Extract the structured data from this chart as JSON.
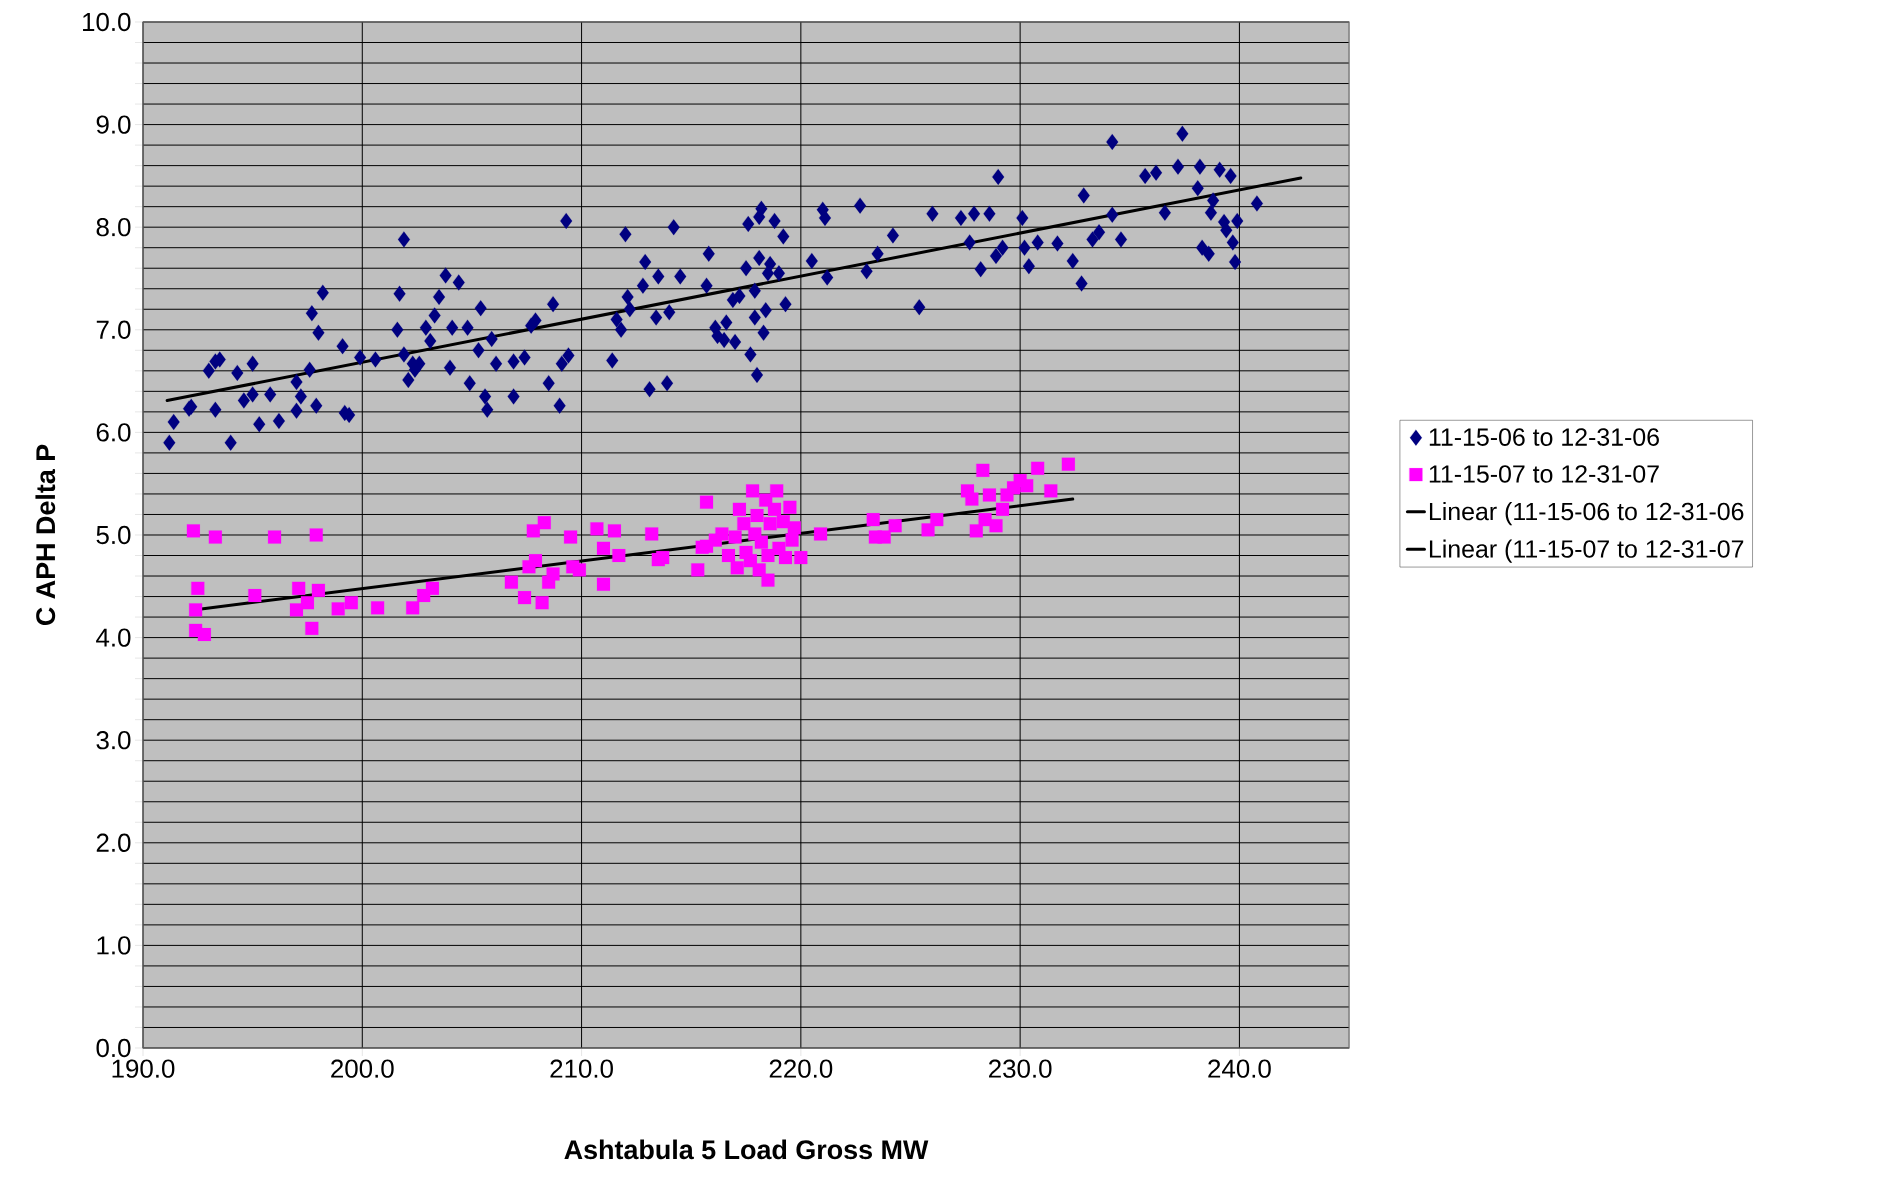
{
  "chart_data": {
    "type": "scatter",
    "xlabel": "Ashtabula 5 Load Gross MW",
    "ylabel": "C APH Delta P",
    "xlim": [
      190,
      245
    ],
    "ylim": [
      0,
      10
    ],
    "xticks": [
      {
        "value": 190,
        "label": "190.0"
      },
      {
        "value": 200,
        "label": "200.0"
      },
      {
        "value": 210,
        "label": "210.0"
      },
      {
        "value": 220,
        "label": "220.0"
      },
      {
        "value": 230,
        "label": "230.0"
      },
      {
        "value": 240,
        "label": "240.0"
      }
    ],
    "yticks": [
      {
        "value": 0,
        "label": "0.0"
      },
      {
        "value": 0.2,
        "label": null
      },
      {
        "value": 0.4,
        "label": null
      },
      {
        "value": 0.6,
        "label": null
      },
      {
        "value": 0.8,
        "label": null
      },
      {
        "value": 1,
        "label": "1.0"
      },
      {
        "value": 1.2,
        "label": null
      },
      {
        "value": 1.4,
        "label": null
      },
      {
        "value": 1.6,
        "label": null
      },
      {
        "value": 1.8,
        "label": null
      },
      {
        "value": 2,
        "label": "2.0"
      },
      {
        "value": 2.2,
        "label": null
      },
      {
        "value": 2.4,
        "label": null
      },
      {
        "value": 2.6,
        "label": null
      },
      {
        "value": 2.8,
        "label": null
      },
      {
        "value": 3,
        "label": "3.0"
      },
      {
        "value": 3.2,
        "label": null
      },
      {
        "value": 3.4,
        "label": null
      },
      {
        "value": 3.6,
        "label": null
      },
      {
        "value": 3.8,
        "label": null
      },
      {
        "value": 4,
        "label": "4.0"
      },
      {
        "value": 4.2,
        "label": null
      },
      {
        "value": 4.4,
        "label": null
      },
      {
        "value": 4.6,
        "label": null
      },
      {
        "value": 4.8,
        "label": null
      },
      {
        "value": 5,
        "label": "5.0"
      },
      {
        "value": 5.2,
        "label": null
      },
      {
        "value": 5.4,
        "label": null
      },
      {
        "value": 5.6,
        "label": null
      },
      {
        "value": 5.8,
        "label": null
      },
      {
        "value": 6,
        "label": "6.0"
      },
      {
        "value": 6.2,
        "label": null
      },
      {
        "value": 6.4,
        "label": null
      },
      {
        "value": 6.6,
        "label": null
      },
      {
        "value": 6.8,
        "label": null
      },
      {
        "value": 7,
        "label": "7.0"
      },
      {
        "value": 7.2,
        "label": null
      },
      {
        "value": 7.4,
        "label": null
      },
      {
        "value": 7.6,
        "label": null
      },
      {
        "value": 7.8,
        "label": null
      },
      {
        "value": 8,
        "label": "8.0"
      },
      {
        "value": 8.2,
        "label": null
      },
      {
        "value": 8.4,
        "label": null
      },
      {
        "value": 8.6,
        "label": null
      },
      {
        "value": 8.8,
        "label": null
      },
      {
        "value": 9,
        "label": "9.0"
      },
      {
        "value": 9.2,
        "label": null
      },
      {
        "value": 9.4,
        "label": null
      },
      {
        "value": 9.6,
        "label": null
      },
      {
        "value": 9.8,
        "label": null
      },
      {
        "value": 10,
        "label": "10.0"
      }
    ],
    "grid": true,
    "legend": "right",
    "series": [
      {
        "name": "11-15-06 to 12-31-06",
        "color": "#000080",
        "marker": "diamond",
        "x": [
          191.2,
          191.4,
          192.1,
          192.2,
          193.0,
          193.3,
          193.5,
          193.3,
          194.0,
          194.3,
          194.6,
          195.0,
          195.3,
          195.0,
          195.8,
          196.2,
          197.0,
          197.0,
          197.2,
          197.6,
          197.7,
          197.9,
          198.0,
          198.2,
          199.1,
          199.2,
          199.4,
          199.9,
          200.6,
          201.6,
          201.7,
          201.9,
          201.9,
          202.1,
          202.3,
          202.4,
          202.6,
          202.9,
          203.1,
          203.3,
          203.5,
          203.8,
          204.0,
          204.1,
          204.4,
          204.8,
          204.9,
          205.3,
          205.4,
          205.6,
          205.7,
          205.9,
          206.1,
          206.9,
          206.9,
          207.4,
          207.7,
          207.9,
          208.5,
          208.7,
          209.0,
          209.1,
          209.3,
          209.4,
          211.4,
          211.6,
          211.8,
          212.0,
          212.1,
          212.2,
          212.8,
          212.9,
          213.1,
          213.4,
          213.5,
          213.9,
          214.0,
          214.2,
          214.5,
          215.7,
          215.8,
          216.1,
          216.2,
          216.5,
          216.6,
          216.9,
          217.0,
          217.2,
          217.5,
          217.6,
          217.7,
          217.9,
          217.9,
          218.0,
          218.1,
          218.2,
          218.1,
          218.3,
          218.4,
          218.5,
          218.6,
          218.8,
          219.0,
          219.2,
          219.3,
          220.5,
          221.0,
          221.1,
          221.2,
          222.7,
          223.0,
          223.5,
          224.2,
          225.4,
          226.0,
          227.3,
          227.7,
          227.9,
          228.2,
          228.6,
          228.9,
          229.0,
          229.2,
          230.1,
          230.2,
          230.4,
          230.8,
          231.7,
          232.4,
          232.8,
          232.9,
          233.3,
          233.6,
          234.2,
          234.2,
          234.6,
          235.7,
          236.2,
          236.6,
          237.2,
          237.4,
          238.1,
          238.2,
          238.3,
          238.6,
          238.7,
          238.8,
          239.1,
          239.3,
          239.4,
          239.6,
          239.7,
          239.8,
          239.9,
          240.8
        ],
        "values": [
          5.9,
          6.1,
          6.23,
          6.25,
          6.6,
          6.69,
          6.71,
          6.22,
          5.9,
          6.58,
          6.31,
          6.67,
          6.08,
          6.37,
          6.37,
          6.11,
          6.49,
          6.21,
          6.35,
          6.61,
          7.16,
          6.26,
          6.97,
          7.36,
          6.84,
          6.19,
          6.17,
          6.73,
          6.71,
          7.0,
          7.35,
          7.88,
          6.76,
          6.51,
          6.67,
          6.61,
          6.67,
          7.02,
          6.89,
          7.14,
          7.32,
          7.53,
          6.63,
          7.02,
          7.46,
          7.02,
          6.48,
          6.8,
          7.21,
          6.35,
          6.22,
          6.91,
          6.67,
          6.35,
          6.69,
          6.73,
          7.04,
          7.09,
          6.48,
          7.25,
          6.26,
          6.67,
          8.06,
          6.75,
          6.7,
          7.1,
          7.0,
          7.93,
          7.32,
          7.2,
          7.43,
          7.66,
          6.42,
          7.12,
          7.52,
          6.48,
          7.17,
          8.0,
          7.52,
          7.43,
          7.74,
          7.02,
          6.94,
          6.9,
          7.07,
          7.29,
          6.88,
          7.33,
          7.6,
          8.03,
          6.76,
          7.38,
          7.12,
          6.56,
          8.1,
          8.18,
          7.7,
          6.97,
          7.19,
          7.55,
          7.64,
          8.06,
          7.55,
          7.91,
          7.25,
          7.67,
          8.17,
          8.09,
          7.51,
          8.21,
          7.57,
          7.74,
          7.92,
          7.22,
          8.13,
          8.09,
          7.85,
          8.13,
          7.59,
          8.13,
          7.72,
          8.49,
          7.8,
          8.09,
          7.8,
          7.62,
          7.85,
          7.84,
          7.67,
          7.45,
          8.31,
          7.88,
          7.95,
          8.12,
          8.83,
          7.88,
          8.5,
          8.53,
          8.14,
          8.59,
          8.91,
          8.38,
          8.59,
          7.8,
          7.74,
          8.14,
          8.26,
          8.56,
          8.05,
          7.97,
          8.5,
          7.85,
          7.66,
          8.06,
          8.23
        ]
      },
      {
        "name": "11-15-07 to 12-31-07",
        "color": "#ff00ff",
        "marker": "square",
        "x": [
          192.3,
          192.4,
          192.4,
          192.5,
          192.8,
          193.3,
          195.1,
          196.0,
          197.0,
          197.1,
          197.5,
          197.7,
          197.9,
          198.0,
          198.9,
          199.5,
          200.7,
          202.3,
          202.8,
          203.2,
          206.8,
          207.4,
          207.6,
          207.8,
          207.9,
          208.2,
          208.3,
          208.5,
          208.7,
          209.5,
          209.6,
          209.9,
          210.7,
          211.0,
          211.0,
          211.5,
          211.7,
          213.2,
          213.5,
          213.7,
          215.3,
          215.5,
          215.7,
          215.7,
          216.1,
          216.4,
          216.7,
          217.0,
          217.1,
          217.2,
          217.4,
          217.5,
          217.7,
          217.8,
          217.9,
          218.0,
          218.1,
          218.2,
          218.4,
          218.5,
          218.5,
          218.6,
          218.8,
          218.9,
          219.0,
          219.2,
          219.3,
          219.5,
          219.6,
          219.7,
          220.0,
          220.9,
          223.3,
          223.4,
          223.8,
          224.3,
          225.8,
          226.2,
          227.6,
          227.8,
          228.0,
          228.3,
          228.4,
          228.6,
          228.9,
          229.2,
          229.4,
          229.7,
          230.0,
          230.3,
          230.8,
          231.4,
          232.2
        ],
        "values": [
          5.04,
          4.27,
          4.07,
          4.48,
          4.03,
          4.98,
          4.41,
          4.98,
          4.27,
          4.48,
          4.34,
          4.09,
          5.0,
          4.46,
          4.28,
          4.34,
          4.29,
          4.29,
          4.41,
          4.48,
          4.54,
          4.39,
          4.69,
          5.04,
          4.75,
          4.34,
          5.12,
          4.54,
          4.62,
          4.98,
          4.69,
          4.66,
          5.06,
          4.52,
          4.87,
          5.04,
          4.8,
          5.01,
          4.76,
          4.78,
          4.66,
          4.88,
          5.32,
          4.89,
          4.95,
          5.01,
          4.8,
          4.98,
          4.68,
          5.25,
          5.11,
          4.83,
          4.75,
          5.43,
          5.01,
          5.19,
          4.66,
          4.93,
          5.34,
          4.8,
          4.56,
          5.11,
          5.25,
          5.43,
          4.87,
          5.13,
          4.78,
          5.27,
          4.95,
          5.07,
          4.78,
          5.01,
          5.15,
          4.98,
          4.98,
          5.09,
          5.05,
          5.15,
          5.43,
          5.35,
          5.04,
          5.63,
          5.15,
          5.39,
          5.09,
          5.25,
          5.39,
          5.46,
          5.53,
          5.48,
          5.65,
          5.43,
          5.69
        ]
      },
      {
        "name": "Linear (11-15-06 to 12-31-06",
        "type": "line",
        "color": "#000000",
        "marker": "none",
        "x": [
          191.1,
          242.8
        ],
        "values": [
          6.31,
          8.48
        ]
      },
      {
        "name": "Linear (11-15-07 to 12-31-07",
        "type": "line",
        "color": "#000000",
        "marker": "none",
        "x": [
          192.3,
          232.4
        ],
        "values": [
          4.27,
          5.35
        ]
      }
    ]
  }
}
